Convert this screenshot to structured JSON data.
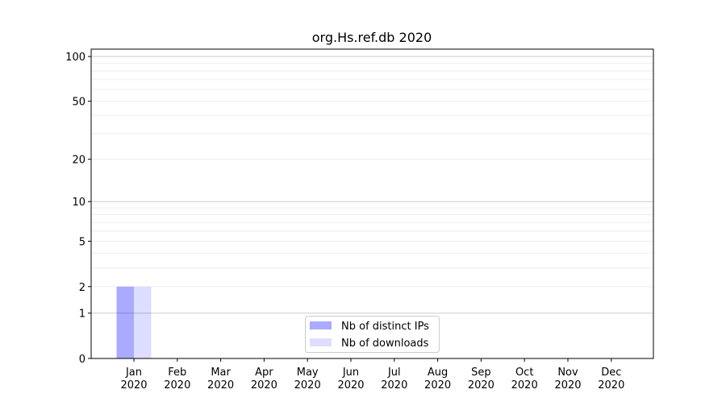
{
  "chart_data": {
    "type": "bar",
    "title": "org.Hs.ref.db 2020",
    "xlabel": "",
    "ylabel": "",
    "yscale": "log(1+y)",
    "ylim": [
      0,
      112
    ],
    "yticks": [
      0,
      1,
      2,
      5,
      10,
      20,
      50,
      100
    ],
    "ytick_labels": [
      "0",
      "1",
      "2",
      "5",
      "10",
      "20",
      "50",
      "100"
    ],
    "grid": true,
    "legend_placement": "lower center",
    "categories": [
      "Jan\n2020",
      "Feb\n2020",
      "Mar\n2020",
      "Apr\n2020",
      "May\n2020",
      "Jun\n2020",
      "Jul\n2020",
      "Aug\n2020",
      "Sep\n2020",
      "Oct\n2020",
      "Nov\n2020",
      "Dec\n2020"
    ],
    "series": [
      {
        "name": "Nb of distinct IPs",
        "color": "#aaaaff",
        "values": [
          2,
          0,
          0,
          0,
          0,
          0,
          0,
          0,
          0,
          0,
          0,
          0
        ]
      },
      {
        "name": "Nb of downloads",
        "color": "#ddddff",
        "values": [
          2,
          0,
          0,
          0,
          0,
          0,
          0,
          0,
          0,
          0,
          0,
          0
        ]
      }
    ]
  }
}
